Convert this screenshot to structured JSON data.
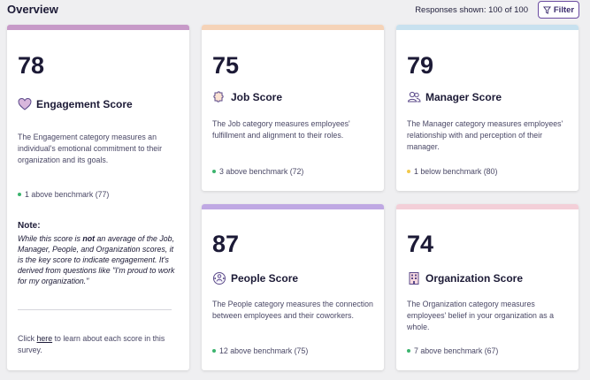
{
  "header": {
    "title": "Overview",
    "responses_label": "Responses shown: 100 of 100",
    "filter_label": "Filter"
  },
  "cards": [
    {
      "key": "engagement",
      "score": "78",
      "name": "Engagement Score",
      "icon": "heart-icon",
      "bar_color": "#c79ac8",
      "description": "The Engagement category measures an individual's emotional commitment to their organization and its goals.",
      "benchmark": "1 above benchmark (77)",
      "benchmark_status": "above",
      "note_title": "Note:",
      "note_parts": {
        "before": "While this score is ",
        "bold": "not",
        "after": " an average of the Job, Manager, People, and Organization scores, it is the key score to indicate engagement. It's derived from questions like \"I'm proud to work for my organization.\""
      },
      "learn_parts": {
        "before": "Click ",
        "link": "here",
        "after": " to learn about each score in this survey."
      }
    },
    {
      "key": "job",
      "score": "75",
      "name": "Job Score",
      "icon": "puzzle-icon",
      "bar_color": "#f5d3b8",
      "description": "The Job category measures employees' fulfillment and alignment to their roles.",
      "benchmark": "3 above benchmark (72)",
      "benchmark_status": "above"
    },
    {
      "key": "manager",
      "score": "79",
      "name": "Manager Score",
      "icon": "people-icon",
      "bar_color": "#c8e1ef",
      "description": "The Manager category measures employees' relationship with and perception of their manager.",
      "benchmark": "1 below benchmark (80)",
      "benchmark_status": "below"
    },
    {
      "key": "people",
      "score": "87",
      "name": "People Score",
      "icon": "people-network-icon",
      "bar_color": "#bfa8e3",
      "description": "The People category measures the connection between employees and their coworkers.",
      "benchmark": "12 above benchmark (75)",
      "benchmark_status": "above"
    },
    {
      "key": "organization",
      "score": "74",
      "name": "Organization Score",
      "icon": "building-icon",
      "bar_color": "#f3cfd8",
      "description": "The Organization category measures employees' belief in your organization as a whole.",
      "benchmark": "7 above benchmark (67)",
      "benchmark_status": "above"
    }
  ],
  "colors": {
    "above_dot": "#3cb46e",
    "below_dot": "#f2c94c",
    "icon_stroke": "#5b4a8a"
  }
}
